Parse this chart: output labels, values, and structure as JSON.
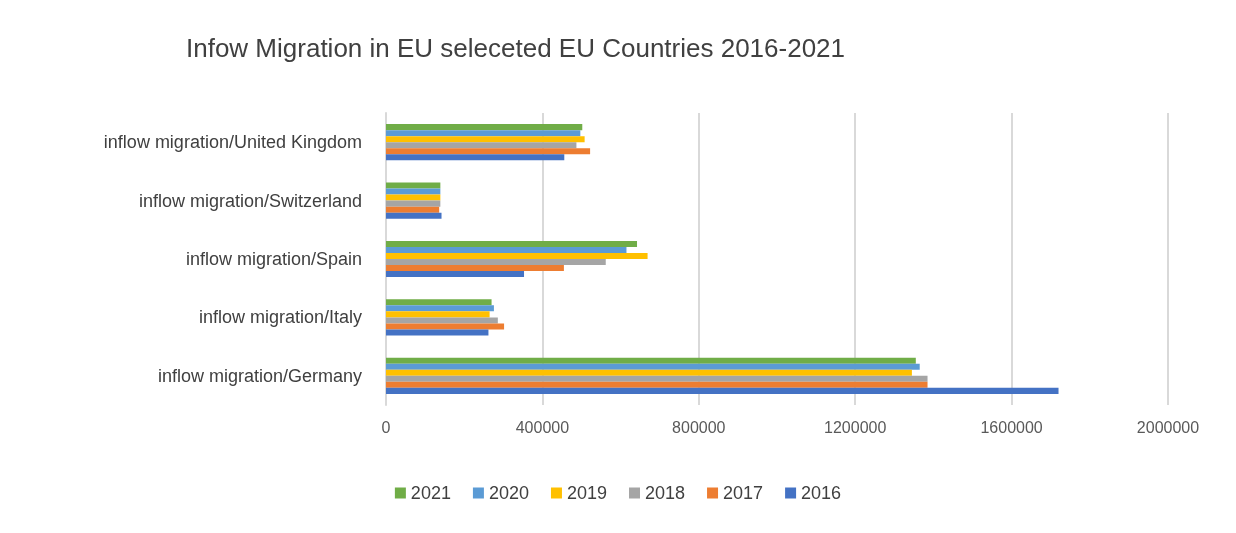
{
  "chart_data": {
    "type": "bar",
    "orientation": "horizontal",
    "title": "Infow Migration in EU seleceted EU Countries 2016-2021",
    "categories": [
      "inflow migration/United Kingdom",
      "inflow migration/Switzerland",
      "inflow migration/Spain",
      "inflow migration/Italy",
      "inflow migration/Germany"
    ],
    "series": [
      {
        "name": "2021",
        "color": "#70ad47",
        "values": [
          502000,
          139000,
          642000,
          270000,
          1355000
        ]
      },
      {
        "name": "2020",
        "color": "#5b9bd5",
        "values": [
          497000,
          139000,
          615000,
          276000,
          1365000
        ]
      },
      {
        "name": "2019",
        "color": "#ffc000",
        "values": [
          508000,
          139000,
          669000,
          265000,
          1345000
        ]
      },
      {
        "name": "2018",
        "color": "#a5a5a5",
        "values": [
          487000,
          139000,
          562000,
          286000,
          1385000
        ]
      },
      {
        "name": "2017",
        "color": "#ed7d31",
        "values": [
          522000,
          136000,
          455000,
          302000,
          1385000
        ]
      },
      {
        "name": "2016",
        "color": "#4472c4",
        "values": [
          456000,
          142000,
          353000,
          262000,
          1720000
        ]
      }
    ],
    "xlim": [
      0,
      2000000
    ],
    "xticks": [
      0,
      400000,
      800000,
      1200000,
      1600000,
      2000000
    ],
    "grid": "x",
    "legend": "bottom"
  }
}
